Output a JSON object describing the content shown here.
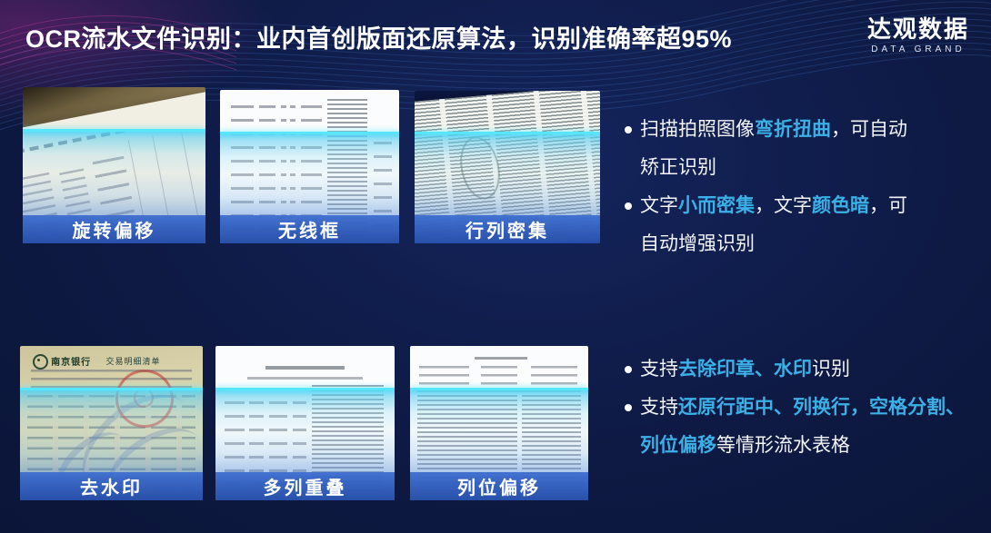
{
  "slide": {
    "title": "OCR流水文件识别：业内首创版面还原算法，识别准确率超95%",
    "logo": {
      "name": "达观数据",
      "subtitle": "DATA GRAND"
    }
  },
  "colors": {
    "background": "#0e1a44",
    "highlight_cyan": "#3bb0e6",
    "label_bar_blue": "#2f5fc0",
    "scan_edge_cyan": "#58e6ff",
    "title_white": "#ffffff"
  },
  "thumbnails": [
    {
      "label": "旋转偏移"
    },
    {
      "label": "无线框"
    },
    {
      "label": "行列密集"
    },
    {
      "label": "去水印",
      "doc_header": "南京银行",
      "doc_title": "交易明细清单"
    },
    {
      "label": "多列重叠"
    },
    {
      "label": "列位偏移"
    }
  ],
  "bullet_groups": [
    {
      "items": [
        {
          "segments": [
            {
              "text": "扫描拍照图像",
              "hl": false
            },
            {
              "text": "弯折扭曲",
              "hl": true
            },
            {
              "text": "，可自动矫正识别",
              "hl": false
            }
          ]
        },
        {
          "segments": [
            {
              "text": "文字",
              "hl": false
            },
            {
              "text": "小而密集",
              "hl": true
            },
            {
              "text": "，文字",
              "hl": false
            },
            {
              "text": "颜色暗",
              "hl": true
            },
            {
              "text": "，可自动增强识别",
              "hl": false
            }
          ]
        }
      ]
    },
    {
      "items": [
        {
          "segments": [
            {
              "text": "支持",
              "hl": false
            },
            {
              "text": "去除印章、水印",
              "hl": true
            },
            {
              "text": "识别",
              "hl": false
            }
          ]
        },
        {
          "segments": [
            {
              "text": "支持",
              "hl": false
            },
            {
              "text": "还原行距中、列换行，空格分割、列位偏移",
              "hl": true
            },
            {
              "text": "等情形流水表格",
              "hl": false
            }
          ]
        }
      ]
    }
  ]
}
